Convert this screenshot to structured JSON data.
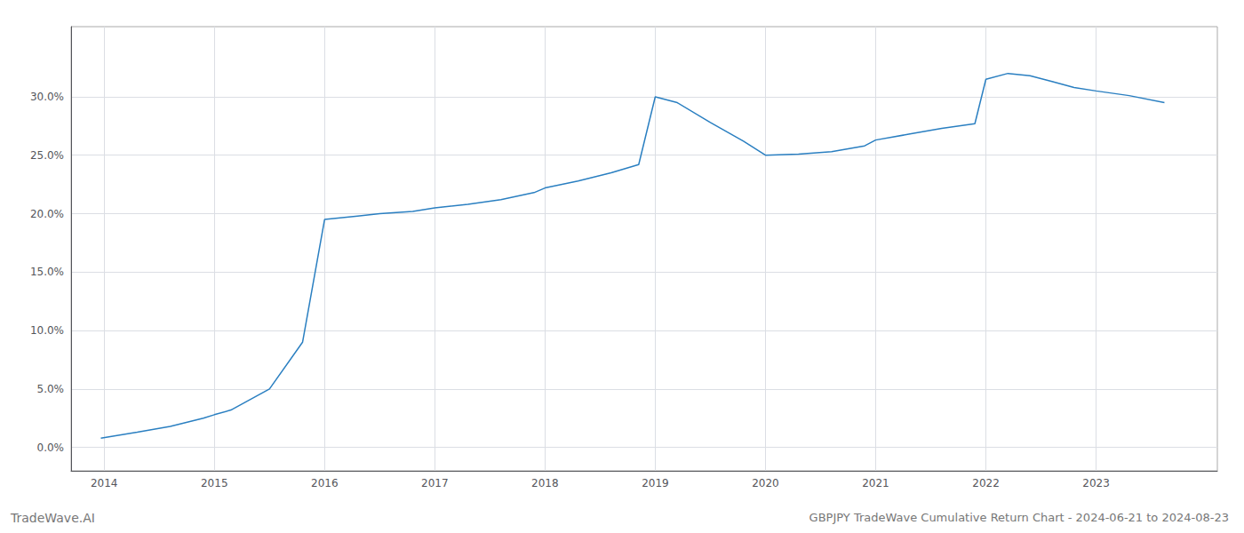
{
  "chart_data": {
    "type": "line",
    "title": "GBPJPY TradeWave Cumulative Return Chart - 2024-06-21 to 2024-08-23",
    "annotations": [
      "TradeWave.AI"
    ],
    "x": [
      2013.97,
      2014.3,
      2014.6,
      2014.9,
      2015.0,
      2015.15,
      2015.5,
      2015.8,
      2016.0,
      2016.3,
      2016.5,
      2016.8,
      2017.0,
      2017.3,
      2017.6,
      2017.9,
      2018.0,
      2018.3,
      2018.6,
      2018.85,
      2019.0,
      2019.2,
      2019.5,
      2019.8,
      2020.0,
      2020.3,
      2020.6,
      2020.9,
      2021.0,
      2021.3,
      2021.6,
      2021.9,
      2022.0,
      2022.2,
      2022.4,
      2022.6,
      2022.8,
      2023.0,
      2023.3,
      2023.62
    ],
    "values": [
      0.008,
      0.013,
      0.018,
      0.025,
      0.028,
      0.032,
      0.05,
      0.09,
      0.195,
      0.198,
      0.2,
      0.202,
      0.205,
      0.208,
      0.212,
      0.218,
      0.222,
      0.228,
      0.235,
      0.242,
      0.3,
      0.295,
      0.278,
      0.262,
      0.25,
      0.251,
      0.253,
      0.258,
      0.263,
      0.268,
      0.273,
      0.277,
      0.315,
      0.32,
      0.318,
      0.313,
      0.308,
      0.305,
      0.301,
      0.295
    ],
    "color": "#2a7fc1",
    "xlim": [
      2013.7,
      2024.1
    ],
    "ylim": [
      -0.02,
      0.36
    ],
    "xticks": [
      2014,
      2015,
      2016,
      2017,
      2018,
      2019,
      2020,
      2021,
      2022,
      2023
    ],
    "yticks": [
      {
        "value": 0.0,
        "label": "0.0%"
      },
      {
        "value": 0.05,
        "label": "5.0%"
      },
      {
        "value": 0.1,
        "label": "10.0%"
      },
      {
        "value": 0.15,
        "label": "15.0%"
      },
      {
        "value": 0.2,
        "label": "20.0%"
      },
      {
        "value": 0.25,
        "label": "25.0%"
      },
      {
        "value": 0.3,
        "label": "30.0%"
      }
    ],
    "grid": true
  }
}
